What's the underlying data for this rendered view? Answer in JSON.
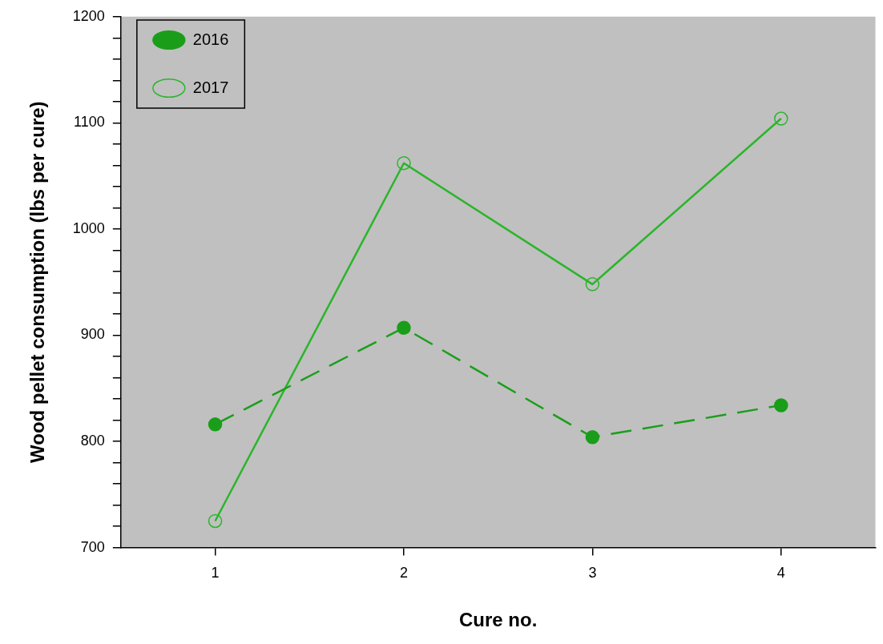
{
  "chart_data": {
    "type": "line",
    "xlabel": "Cure no.",
    "ylabel": "Wood pellet consumption (lbs per cure)",
    "x": [
      1,
      2,
      3,
      4
    ],
    "series": [
      {
        "name": "2016",
        "color": "#1a9e1a",
        "values": [
          816,
          907,
          804,
          834
        ],
        "line_style": "dashed"
      },
      {
        "name": "2017",
        "color": "#2ab52a",
        "values": [
          725,
          1062,
          948,
          1104
        ],
        "line_style": "solid"
      }
    ],
    "xlim": [
      0.5,
      4.5
    ],
    "xticks": [
      1,
      2,
      3,
      4
    ],
    "ylim": [
      700,
      1200
    ],
    "yticks": [
      700,
      {
        "value": 720,
        "label": null
      },
      {
        "value": 740,
        "label": null
      },
      {
        "value": 760,
        "label": null
      },
      {
        "value": 780,
        "label": null
      },
      800,
      {
        "value": 820,
        "label": null
      },
      {
        "value": 840,
        "label": null
      },
      {
        "value": 860,
        "label": null
      },
      {
        "value": 880,
        "label": null
      },
      900,
      {
        "value": 920,
        "label": null
      },
      {
        "value": 940,
        "label": null
      },
      {
        "value": 960,
        "label": null
      },
      {
        "value": 980,
        "label": null
      },
      1000,
      {
        "value": 1020,
        "label": null
      },
      {
        "value": 1040,
        "label": null
      },
      {
        "value": 1060,
        "label": null
      },
      {
        "value": 1080,
        "label": null
      },
      1100,
      {
        "value": 1120,
        "label": null
      },
      {
        "value": 1140,
        "label": null
      },
      {
        "value": 1160,
        "label": null
      },
      {
        "value": 1180,
        "label": null
      },
      1200
    ],
    "grid": false,
    "legend": "top left",
    "marker": "circle"
  }
}
